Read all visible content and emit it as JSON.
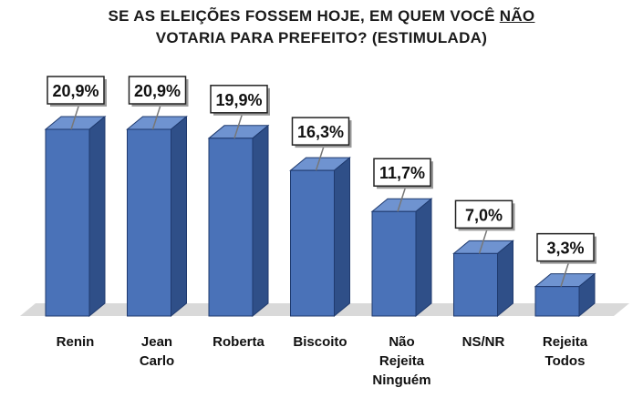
{
  "title": {
    "line1_pre": "SE AS ELEIÇÕES FOSSEM HOJE, EM QUEM VOCÊ ",
    "line1_underlined": "NÃO",
    "line2": "VOTARIA PARA PREFEITO? (ESTIMULADA)"
  },
  "colors": {
    "bar_front": "#4a72b8",
    "bar_side": "#2f4f88",
    "bar_top": "#6f93d0",
    "bar_edge": "#1f3a6e",
    "floor": "#d9d9d9"
  },
  "chart_data": {
    "type": "bar",
    "title": "SE AS ELEIÇÕES FOSSEM HOJE, EM QUEM VOCÊ NÃO VOTARIA PARA PREFEITO? (ESTIMULADA)",
    "categories": [
      "Renin",
      "Jean\nCarlo",
      "Roberta",
      "Biscoito",
      "Não\nRejeita\nNinguém",
      "NS/NR",
      "Rejeita\nTodos"
    ],
    "values": [
      20.9,
      20.9,
      19.9,
      16.3,
      11.7,
      7.0,
      3.3
    ],
    "data_labels": [
      "20,9%",
      "20,9%",
      "19,9%",
      "16,3%",
      "11,7%",
      "7,0%",
      "3,3%"
    ],
    "ylim": [
      0,
      22
    ],
    "grid": false,
    "legend": "none",
    "style": "3d-column"
  }
}
